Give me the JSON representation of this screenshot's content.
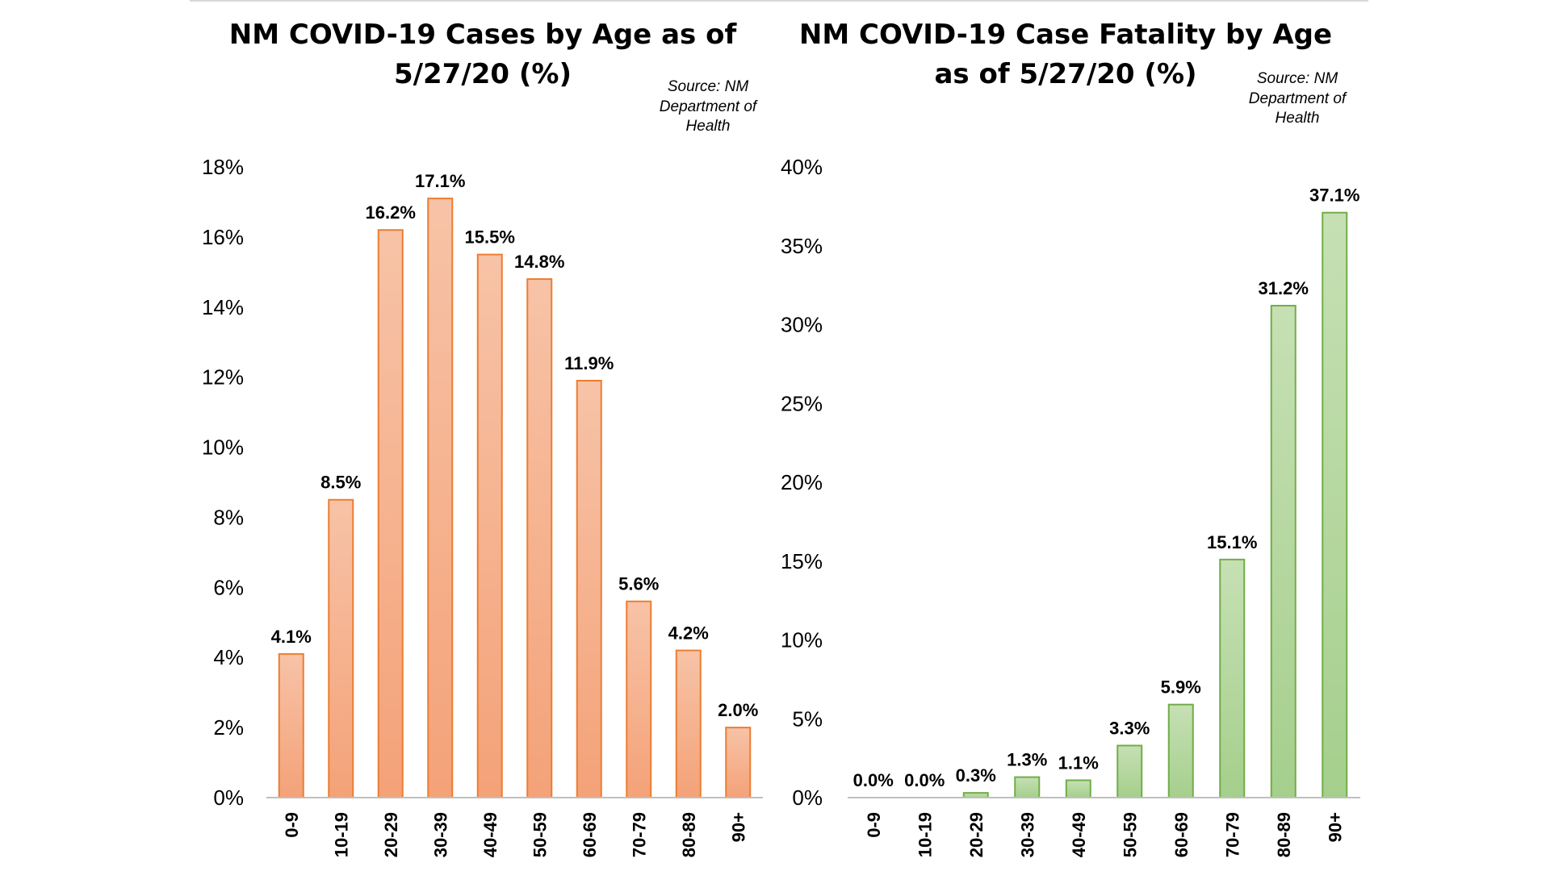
{
  "colors": {
    "cases_fill_top": "#f7c3a7",
    "cases_fill_bottom": "#f4a278",
    "cases_stroke": "#ed7d31",
    "fatality_fill_top": "#c6e0b4",
    "fatality_fill_bottom": "#a5cf8c",
    "fatality_stroke": "#70ad47",
    "axis": "#bfbfbf"
  },
  "chart_data": [
    {
      "type": "bar",
      "title_lines": [
        "NM COVID-19 Cases by Age as of",
        "5/27/20 (%)"
      ],
      "source_lines": [
        "Source: NM",
        "Department of",
        "Health"
      ],
      "categories": [
        "0-9",
        "10-19",
        "20-29",
        "30-39",
        "40-49",
        "50-59",
        "60-69",
        "70-79",
        "80-89",
        "90+"
      ],
      "values": [
        4.1,
        8.5,
        16.2,
        17.1,
        15.5,
        14.8,
        11.9,
        5.6,
        4.2,
        2.0
      ],
      "data_labels": [
        "4.1%",
        "8.5%",
        "16.2%",
        "17.1%",
        "15.5%",
        "14.8%",
        "11.9%",
        "5.6%",
        "4.2%",
        "2.0%"
      ],
      "ylim": [
        0,
        18
      ],
      "yticks": [
        0,
        2,
        4,
        6,
        8,
        10,
        12,
        14,
        16,
        18
      ],
      "ytick_labels": [
        "0%",
        "2%",
        "4%",
        "6%",
        "8%",
        "10%",
        "12%",
        "14%",
        "16%",
        "18%"
      ],
      "xlabel": "",
      "ylabel": "",
      "grid": false,
      "legend": "none"
    },
    {
      "type": "bar",
      "title_lines": [
        "NM COVID-19 Case Fatality by Age",
        "as of 5/27/20 (%)"
      ],
      "source_lines": [
        "Source: NM",
        "Department of",
        "Health"
      ],
      "categories": [
        "0-9",
        "10-19",
        "20-29",
        "30-39",
        "40-49",
        "50-59",
        "60-69",
        "70-79",
        "80-89",
        "90+"
      ],
      "values": [
        0.0,
        0.0,
        0.3,
        1.3,
        1.1,
        3.3,
        5.9,
        15.1,
        31.2,
        37.1
      ],
      "data_labels": [
        "0.0%",
        "0.0%",
        "0.3%",
        "1.3%",
        "1.1%",
        "3.3%",
        "5.9%",
        "15.1%",
        "31.2%",
        "37.1%"
      ],
      "ylim": [
        0,
        40
      ],
      "yticks": [
        0,
        5,
        10,
        15,
        20,
        25,
        30,
        35,
        40
      ],
      "ytick_labels": [
        "0%",
        "5%",
        "10%",
        "15%",
        "20%",
        "25%",
        "30%",
        "35%",
        "40%"
      ],
      "xlabel": "",
      "ylabel": "",
      "grid": false,
      "legend": "none"
    }
  ]
}
